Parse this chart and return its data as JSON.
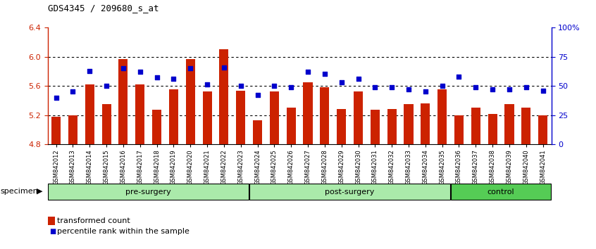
{
  "title": "GDS4345 / 209680_s_at",
  "samples": [
    "GSM842012",
    "GSM842013",
    "GSM842014",
    "GSM842015",
    "GSM842016",
    "GSM842017",
    "GSM842018",
    "GSM842019",
    "GSM842020",
    "GSM842021",
    "GSM842022",
    "GSM842023",
    "GSM842024",
    "GSM842025",
    "GSM842026",
    "GSM842027",
    "GSM842028",
    "GSM842029",
    "GSM842030",
    "GSM842031",
    "GSM842032",
    "GSM842033",
    "GSM842034",
    "GSM842035",
    "GSM842036",
    "GSM842037",
    "GSM842038",
    "GSM842039",
    "GSM842040",
    "GSM842041"
  ],
  "bar_values": [
    5.18,
    5.2,
    5.62,
    5.35,
    5.97,
    5.62,
    5.27,
    5.55,
    5.97,
    5.52,
    6.1,
    5.53,
    5.13,
    5.52,
    5.3,
    5.65,
    5.58,
    5.28,
    5.52,
    5.27,
    5.28,
    5.35,
    5.36,
    5.55,
    5.2,
    5.3,
    5.22,
    5.35,
    5.3,
    5.2
  ],
  "percentile_values": [
    40,
    45,
    63,
    50,
    65,
    62,
    57,
    56,
    65,
    51,
    66,
    50,
    42,
    50,
    49,
    62,
    60,
    53,
    56,
    49,
    49,
    47,
    45,
    50,
    58,
    49,
    47,
    47,
    49,
    46
  ],
  "groups": [
    {
      "label": "pre-surgery",
      "start": 0,
      "end": 12,
      "color": "#AAEAAA"
    },
    {
      "label": "post-surgery",
      "start": 12,
      "end": 24,
      "color": "#AAEAAA"
    },
    {
      "label": "control",
      "start": 24,
      "end": 30,
      "color": "#55CC55"
    }
  ],
  "ylim_left": [
    4.8,
    6.4
  ],
  "ylim_right": [
    0,
    100
  ],
  "yticks_left": [
    4.8,
    5.2,
    5.6,
    6.0,
    6.4
  ],
  "yticks_right": [
    0,
    25,
    50,
    75,
    100
  ],
  "ytick_labels_right": [
    "0",
    "25",
    "50",
    "75",
    "100%"
  ],
  "bar_color": "#CC2200",
  "dot_color": "#0000CC",
  "bar_bottom": 4.8,
  "dot_size": 25
}
